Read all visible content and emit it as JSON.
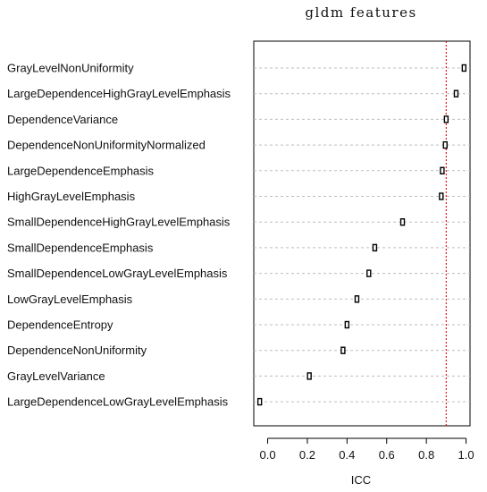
{
  "chart_data": {
    "type": "scatter",
    "title": "gldm  features",
    "xlabel": "ICC",
    "ylabel": "",
    "xlim": [
      -0.07,
      1.02
    ],
    "xticks": [
      "0.0",
      "0.2",
      "0.4",
      "0.6",
      "0.8",
      "1.0"
    ],
    "xtick_values": [
      0.0,
      0.2,
      0.4,
      0.6,
      0.8,
      1.0
    ],
    "reference_line": {
      "x": 0.9,
      "color": "#e41a1c",
      "style": "dotted"
    },
    "grid": "horizontal dashed",
    "categories": [
      "GrayLevelNonUniformity",
      "LargeDependenceHighGrayLevelEmphasis",
      "DependenceVariance",
      "DependenceNonUniformityNormalized",
      "LargeDependenceEmphasis",
      "HighGrayLevelEmphasis",
      "SmallDependenceHighGrayLevelEmphasis",
      "SmallDependenceEmphasis",
      "SmallDependenceLowGrayLevelEmphasis",
      "LowGrayLevelEmphasis",
      "DependenceEntropy",
      "DependenceNonUniformity",
      "GrayLevelVariance",
      "LargeDependenceLowGrayLevelEmphasis"
    ],
    "values": [
      0.99,
      0.95,
      0.9,
      0.895,
      0.88,
      0.875,
      0.68,
      0.54,
      0.51,
      0.45,
      0.4,
      0.38,
      0.21,
      -0.04
    ]
  }
}
